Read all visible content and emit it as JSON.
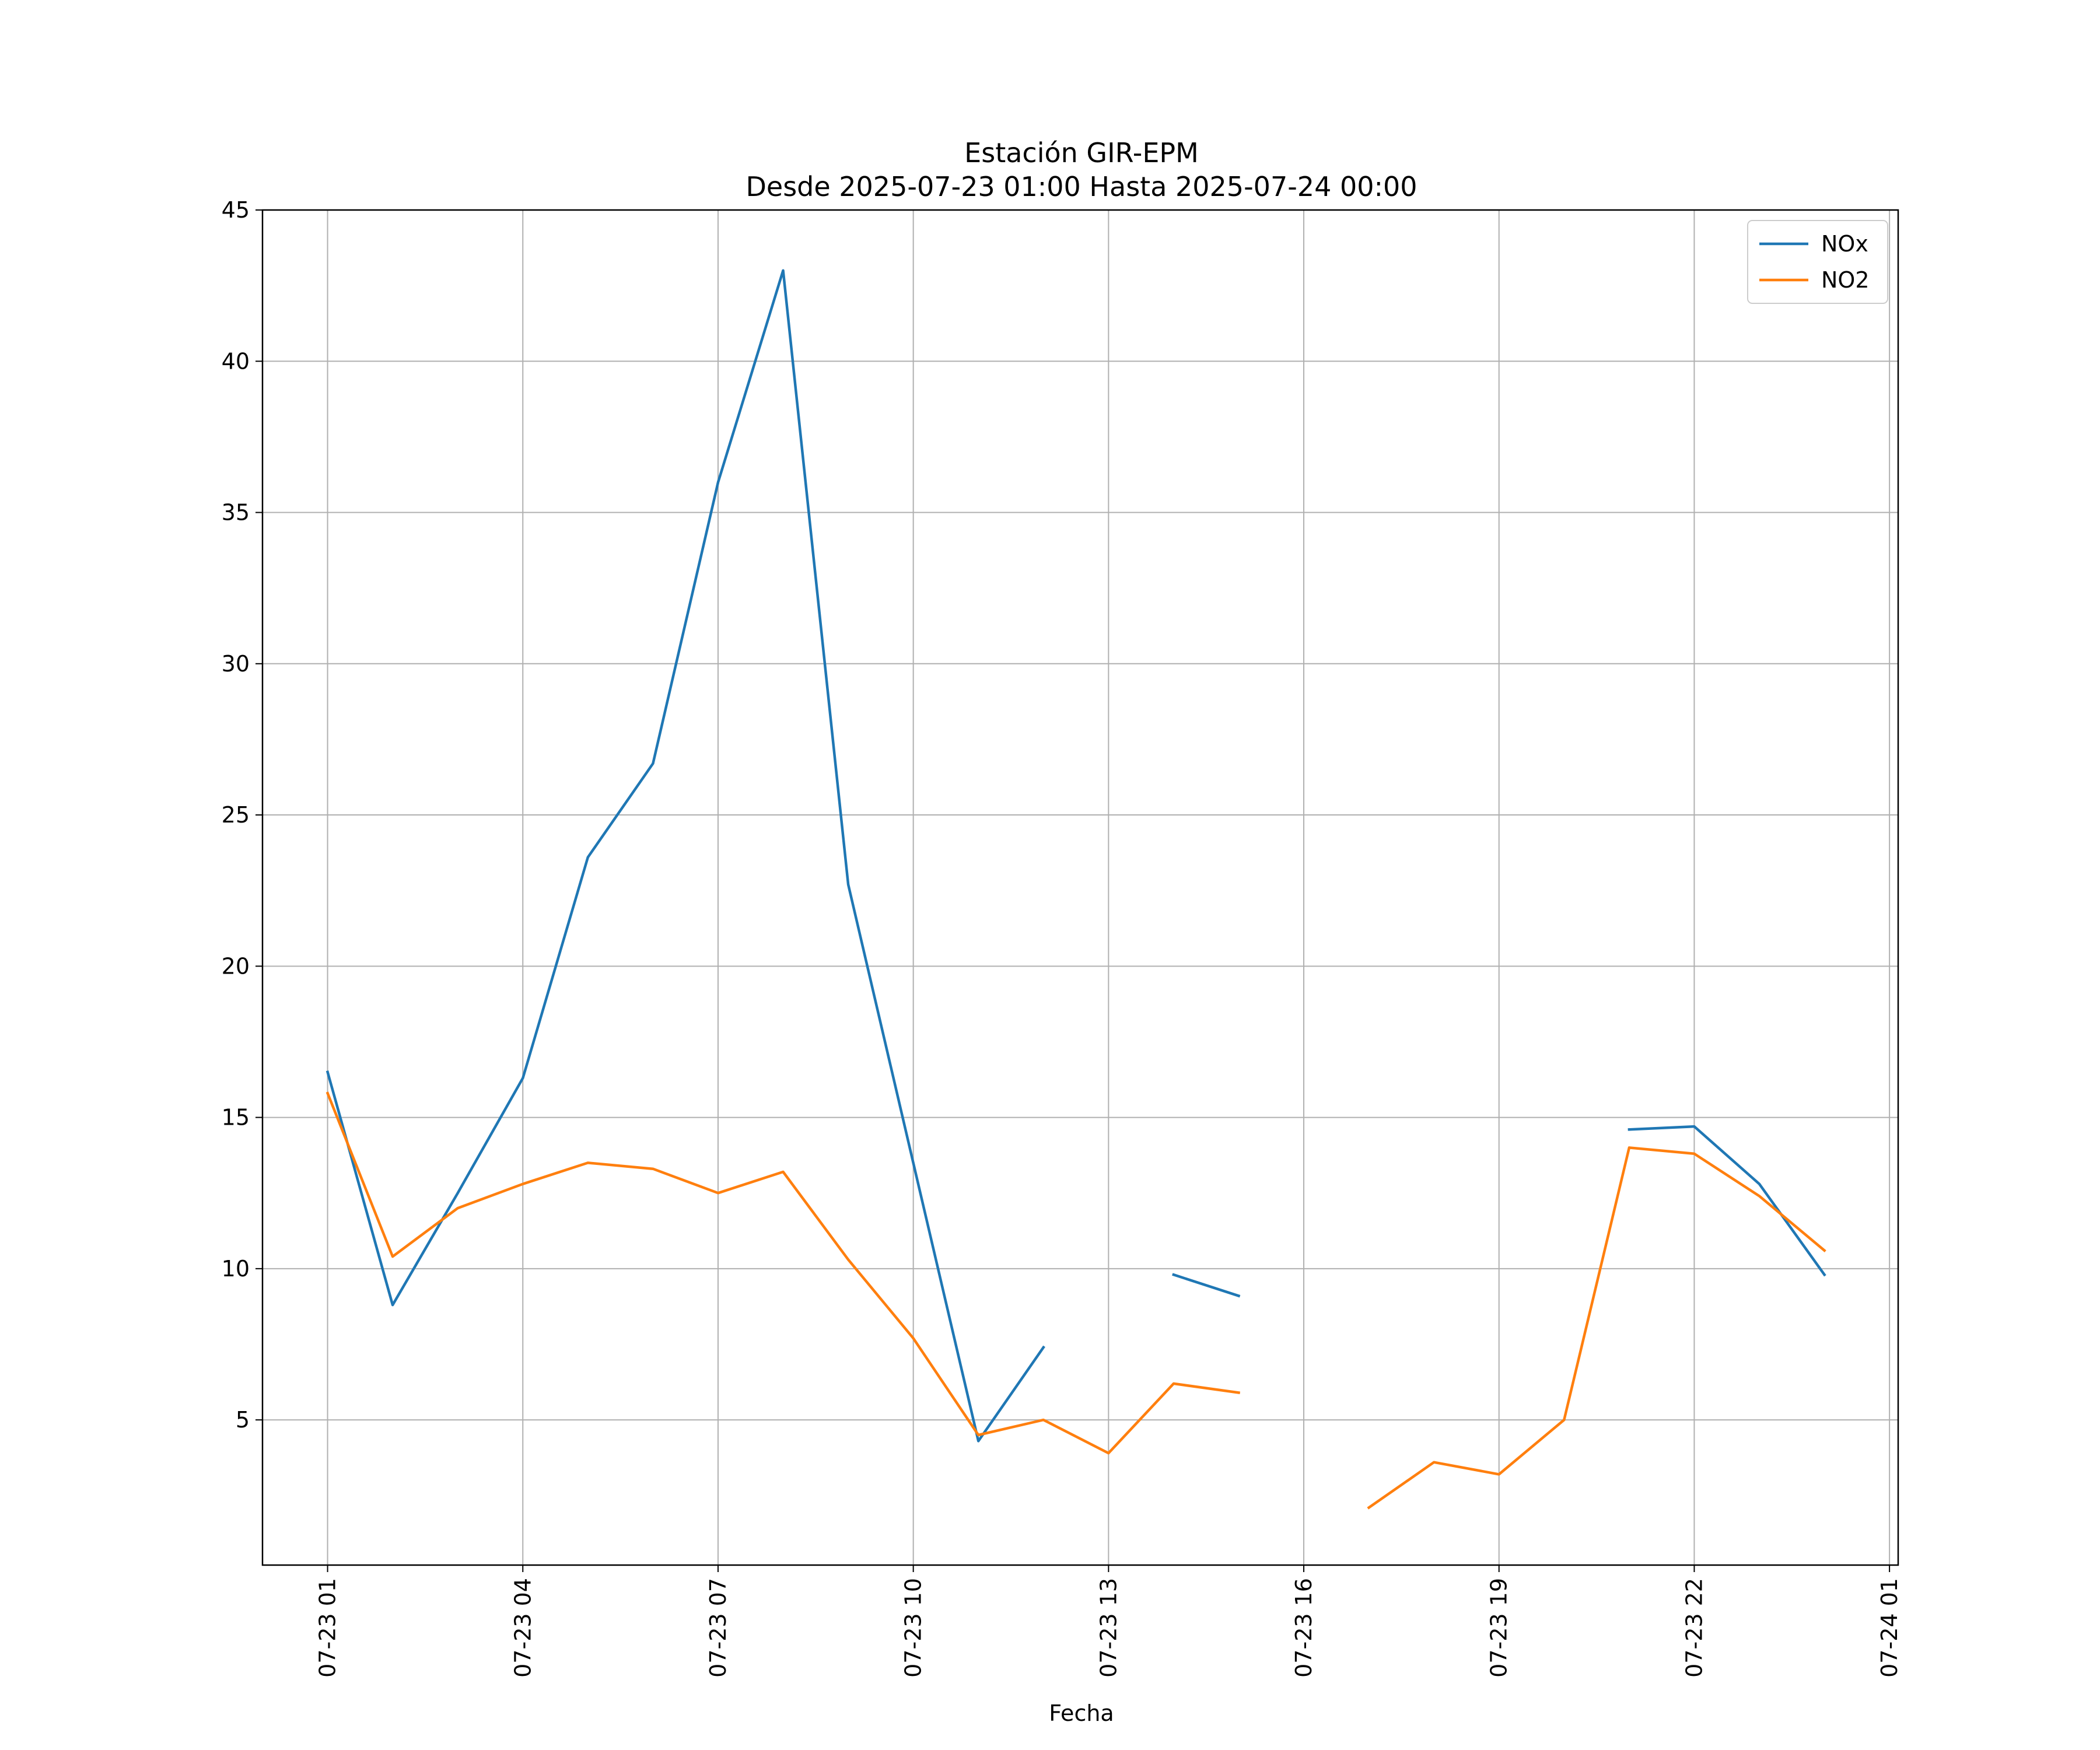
{
  "chart_data": {
    "type": "line",
    "title_line1": "Estación GIR-EPM",
    "title_line2": "Desde 2025-07-23 01:00 Hasta 2025-07-24 00:00",
    "xlabel": "Fecha",
    "ylabel": "",
    "x_hours": [
      "2025-07-23 01:00",
      "2025-07-23 02:00",
      "2025-07-23 03:00",
      "2025-07-23 04:00",
      "2025-07-23 05:00",
      "2025-07-23 06:00",
      "2025-07-23 07:00",
      "2025-07-23 08:00",
      "2025-07-23 09:00",
      "2025-07-23 10:00",
      "2025-07-23 11:00",
      "2025-07-23 12:00",
      "2025-07-23 13:00",
      "2025-07-23 14:00",
      "2025-07-23 15:00",
      "2025-07-23 16:00",
      "2025-07-23 17:00",
      "2025-07-23 18:00",
      "2025-07-23 19:00",
      "2025-07-23 20:00",
      "2025-07-23 21:00",
      "2025-07-23 22:00",
      "2025-07-23 23:00",
      "2025-07-24 00:00"
    ],
    "xlim": [
      "2025-07-23 00:00",
      "2025-07-24 01:08"
    ],
    "ylim": [
      0.2,
      45
    ],
    "x_ticks": [
      {
        "value": "2025-07-23 01:00",
        "label": "07-23 01"
      },
      {
        "value": "2025-07-23 04:00",
        "label": "07-23 04"
      },
      {
        "value": "2025-07-23 07:00",
        "label": "07-23 07"
      },
      {
        "value": "2025-07-23 10:00",
        "label": "07-23 10"
      },
      {
        "value": "2025-07-23 13:00",
        "label": "07-23 13"
      },
      {
        "value": "2025-07-23 16:00",
        "label": "07-23 16"
      },
      {
        "value": "2025-07-23 19:00",
        "label": "07-23 19"
      },
      {
        "value": "2025-07-23 22:00",
        "label": "07-23 22"
      },
      {
        "value": "2025-07-24 01:00",
        "label": "07-24 01"
      }
    ],
    "y_ticks": [
      5,
      10,
      15,
      20,
      25,
      30,
      35,
      40,
      45
    ],
    "grid": true,
    "legend_position": "top-right",
    "series": [
      {
        "name": "NOx",
        "color": "#1f77b4",
        "values": [
          16.5,
          8.8,
          12.5,
          16.3,
          23.6,
          26.7,
          36.0,
          43.0,
          22.7,
          13.5,
          4.3,
          7.4,
          null,
          9.8,
          9.1,
          null,
          null,
          null,
          null,
          null,
          14.6,
          14.7,
          12.8,
          9.8
        ]
      },
      {
        "name": "NO2",
        "color": "#ff7f0e",
        "values": [
          15.8,
          10.4,
          12.0,
          12.8,
          13.5,
          13.3,
          12.5,
          13.2,
          10.3,
          7.7,
          4.5,
          5.0,
          3.9,
          6.2,
          5.9,
          null,
          2.1,
          3.6,
          3.2,
          5.0,
          14.0,
          13.8,
          12.4,
          10.6
        ]
      }
    ]
  }
}
